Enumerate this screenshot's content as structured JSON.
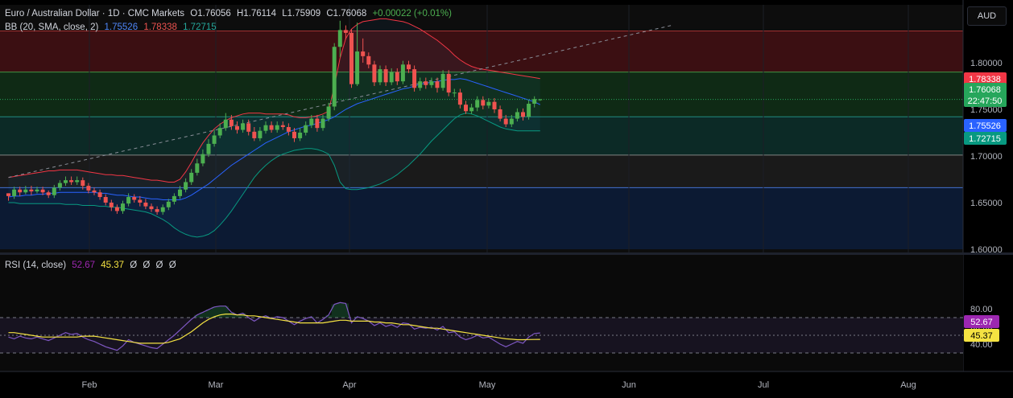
{
  "header": {
    "symbol": "Euro / Australian Dollar · 1D · CMC Markets",
    "open": "O1.76056",
    "high": "H1.76114",
    "low": "L1.75909",
    "close": "C1.76068",
    "change": "+0.00022 (+0.01%)"
  },
  "bb_legend": {
    "title": "BB (20, SMA, close, 2)",
    "basis": "1.75526",
    "upper": "1.78338",
    "lower": "1.72715"
  },
  "rsi_legend": {
    "title": "RSI (14, close)",
    "rsi": "52.67",
    "ma": "45.37",
    "extras": [
      "Ø",
      "Ø",
      "Ø",
      "Ø"
    ]
  },
  "currency_button": "AUD",
  "colors": {
    "up": "#4caf50",
    "down": "#ef5350",
    "bb_basis": "#2962ff",
    "bb_upper": "#f23645",
    "bb_lower": "#089981",
    "rsi": "#7e57c2",
    "rsi_ma": "#f5e342",
    "last_price": "#26a65b"
  },
  "chart_data": [
    {
      "type": "candlestick",
      "title": "Euro / Australian Dollar · 1D · CMC Markets",
      "price_axis": {
        "ticks": [
          "1.80000",
          "1.75000",
          "1.70000",
          "1.65000",
          "1.60000"
        ],
        "range": [
          1.6,
          1.85
        ]
      },
      "time_axis": {
        "ticks": [
          "Feb",
          "Mar",
          "Apr",
          "May",
          "Jun",
          "Jul",
          "Aug"
        ]
      },
      "price_labels": [
        {
          "name": "BB upper",
          "value": "1.78338",
          "color": "#f23645"
        },
        {
          "name": "Last close",
          "value": "1.76068",
          "countdown": "22:47:50",
          "color": "#26a65b"
        },
        {
          "name": "BB basis",
          "value": "1.75526",
          "color": "#2962ff"
        },
        {
          "name": "BB lower",
          "value": "1.72715",
          "color": "#089981"
        }
      ],
      "zones": [
        {
          "from": 1.79,
          "to": 1.834,
          "color": "red"
        },
        {
          "from": 1.742,
          "to": 1.79,
          "color": "green"
        },
        {
          "from": 1.701,
          "to": 1.742,
          "color": "teal"
        },
        {
          "from": 1.666,
          "to": 1.701,
          "color": "grey"
        },
        {
          "from": 1.6,
          "to": 1.666,
          "color": "blue"
        }
      ],
      "candles": [
        [
          1.66,
          1.657,
          1.66,
          1.652
        ],
        [
          1.657,
          1.664,
          1.667,
          1.654
        ],
        [
          1.664,
          1.661,
          1.667,
          1.657
        ],
        [
          1.661,
          1.664,
          1.668,
          1.659
        ],
        [
          1.664,
          1.662,
          1.668,
          1.658
        ],
        [
          1.662,
          1.664,
          1.667,
          1.66
        ],
        [
          1.664,
          1.661,
          1.667,
          1.658
        ],
        [
          1.661,
          1.658,
          1.663,
          1.655
        ],
        [
          1.658,
          1.666,
          1.669,
          1.655
        ],
        [
          1.666,
          1.671,
          1.674,
          1.663
        ],
        [
          1.671,
          1.674,
          1.678,
          1.668
        ],
        [
          1.674,
          1.672,
          1.678,
          1.669
        ],
        [
          1.672,
          1.674,
          1.678,
          1.669
        ],
        [
          1.674,
          1.668,
          1.677,
          1.664
        ],
        [
          1.668,
          1.663,
          1.671,
          1.66
        ],
        [
          1.663,
          1.661,
          1.666,
          1.658
        ],
        [
          1.661,
          1.656,
          1.664,
          1.653
        ],
        [
          1.656,
          1.65,
          1.659,
          1.647
        ],
        [
          1.65,
          1.645,
          1.653,
          1.641
        ],
        [
          1.645,
          1.641,
          1.648,
          1.638
        ],
        [
          1.641,
          1.649,
          1.652,
          1.638
        ],
        [
          1.649,
          1.656,
          1.66,
          1.646
        ],
        [
          1.656,
          1.653,
          1.659,
          1.65
        ],
        [
          1.653,
          1.65,
          1.657,
          1.646
        ],
        [
          1.65,
          1.646,
          1.654,
          1.643
        ],
        [
          1.646,
          1.643,
          1.649,
          1.64
        ],
        [
          1.643,
          1.64,
          1.646,
          1.637
        ],
        [
          1.64,
          1.645,
          1.648,
          1.637
        ],
        [
          1.645,
          1.651,
          1.654,
          1.642
        ],
        [
          1.651,
          1.657,
          1.66,
          1.648
        ],
        [
          1.657,
          1.664,
          1.668,
          1.654
        ],
        [
          1.664,
          1.672,
          1.676,
          1.661
        ],
        [
          1.672,
          1.682,
          1.686,
          1.669
        ],
        [
          1.682,
          1.692,
          1.697,
          1.679
        ],
        [
          1.692,
          1.702,
          1.707,
          1.689
        ],
        [
          1.702,
          1.713,
          1.718,
          1.699
        ],
        [
          1.713,
          1.722,
          1.728,
          1.71
        ],
        [
          1.722,
          1.73,
          1.735,
          1.719
        ],
        [
          1.73,
          1.739,
          1.746,
          1.727
        ],
        [
          1.739,
          1.732,
          1.744,
          1.728
        ],
        [
          1.732,
          1.728,
          1.737,
          1.724
        ],
        [
          1.728,
          1.735,
          1.739,
          1.725
        ],
        [
          1.735,
          1.726,
          1.739,
          1.722
        ],
        [
          1.726,
          1.719,
          1.731,
          1.716
        ],
        [
          1.719,
          1.727,
          1.731,
          1.716
        ],
        [
          1.727,
          1.733,
          1.737,
          1.724
        ],
        [
          1.733,
          1.728,
          1.737,
          1.725
        ],
        [
          1.728,
          1.733,
          1.737,
          1.725
        ],
        [
          1.733,
          1.731,
          1.737,
          1.728
        ],
        [
          1.731,
          1.726,
          1.735,
          1.722
        ],
        [
          1.726,
          1.719,
          1.73,
          1.715
        ],
        [
          1.719,
          1.725,
          1.73,
          1.716
        ],
        [
          1.725,
          1.733,
          1.737,
          1.722
        ],
        [
          1.733,
          1.74,
          1.744,
          1.73
        ],
        [
          1.74,
          1.73,
          1.744,
          1.726
        ],
        [
          1.73,
          1.74,
          1.744,
          1.727
        ],
        [
          1.74,
          1.753,
          1.757,
          1.737
        ],
        [
          1.753,
          1.817,
          1.821,
          1.749
        ],
        [
          1.817,
          1.835,
          1.845,
          1.806
        ],
        [
          1.835,
          1.832,
          1.84,
          1.825
        ],
        [
          1.832,
          1.777,
          1.836,
          1.773
        ],
        [
          1.777,
          1.812,
          1.843,
          1.775
        ],
        [
          1.812,
          1.807,
          1.826,
          1.8
        ],
        [
          1.807,
          1.798,
          1.811,
          1.794
        ],
        [
          1.798,
          1.779,
          1.802,
          1.775
        ],
        [
          1.779,
          1.793,
          1.797,
          1.776
        ],
        [
          1.793,
          1.779,
          1.797,
          1.775
        ],
        [
          1.779,
          1.79,
          1.794,
          1.776
        ],
        [
          1.79,
          1.78,
          1.794,
          1.776
        ],
        [
          1.78,
          1.798,
          1.802,
          1.777
        ],
        [
          1.798,
          1.793,
          1.802,
          1.789
        ],
        [
          1.793,
          1.773,
          1.797,
          1.769
        ],
        [
          1.773,
          1.78,
          1.784,
          1.77
        ],
        [
          1.78,
          1.776,
          1.784,
          1.772
        ],
        [
          1.776,
          1.78,
          1.784,
          1.773
        ],
        [
          1.78,
          1.773,
          1.784,
          1.768
        ],
        [
          1.773,
          1.788,
          1.792,
          1.77
        ],
        [
          1.788,
          1.768,
          1.792,
          1.764
        ],
        [
          1.768,
          1.768,
          1.772,
          1.763
        ],
        [
          1.768,
          1.755,
          1.772,
          1.751
        ],
        [
          1.755,
          1.748,
          1.759,
          1.745
        ],
        [
          1.748,
          1.752,
          1.756,
          1.745
        ],
        [
          1.752,
          1.76,
          1.764,
          1.748
        ],
        [
          1.76,
          1.754,
          1.764,
          1.75
        ],
        [
          1.754,
          1.758,
          1.762,
          1.751
        ],
        [
          1.758,
          1.75,
          1.762,
          1.746
        ],
        [
          1.75,
          1.74,
          1.754,
          1.737
        ],
        [
          1.74,
          1.734,
          1.744,
          1.731
        ],
        [
          1.734,
          1.74,
          1.744,
          1.731
        ],
        [
          1.74,
          1.747,
          1.751,
          1.737
        ],
        [
          1.747,
          1.742,
          1.751,
          1.738
        ],
        [
          1.742,
          1.756,
          1.76,
          1.739
        ],
        [
          1.756,
          1.761,
          1.764,
          1.752
        ],
        [
          1.7606,
          1.7607,
          1.7611,
          1.7591
        ]
      ],
      "bb_upper": [
        1.677,
        1.678,
        1.679,
        1.68,
        1.681,
        1.682,
        1.683,
        1.684,
        1.684,
        1.685,
        1.685,
        1.685,
        1.685,
        1.684,
        1.683,
        1.682,
        1.681,
        1.68,
        1.68,
        1.679,
        1.679,
        1.678,
        1.677,
        1.676,
        1.675,
        1.674,
        1.674,
        1.673,
        1.672,
        1.672,
        1.675,
        1.683,
        1.693,
        1.704,
        1.714,
        1.722,
        1.729,
        1.734,
        1.738,
        1.741,
        1.743,
        1.745,
        1.746,
        1.746,
        1.746,
        1.745,
        1.745,
        1.745,
        1.745,
        1.744,
        1.742,
        1.741,
        1.741,
        1.742,
        1.743,
        1.745,
        1.748,
        1.775,
        1.805,
        1.826,
        1.836,
        1.841,
        1.844,
        1.845,
        1.846,
        1.847,
        1.847,
        1.846,
        1.845,
        1.844,
        1.842,
        1.839,
        1.836,
        1.832,
        1.828,
        1.824,
        1.819,
        1.814,
        1.808,
        1.803,
        1.799,
        1.796,
        1.794,
        1.793,
        1.792,
        1.791,
        1.79,
        1.789,
        1.788,
        1.787,
        1.786,
        1.785,
        1.784,
        1.783
      ],
      "bb_basis": [
        1.656,
        1.657,
        1.657,
        1.658,
        1.658,
        1.659,
        1.659,
        1.66,
        1.66,
        1.661,
        1.661,
        1.661,
        1.661,
        1.661,
        1.661,
        1.661,
        1.66,
        1.66,
        1.659,
        1.658,
        1.658,
        1.657,
        1.656,
        1.656,
        1.655,
        1.654,
        1.654,
        1.653,
        1.653,
        1.653,
        1.653,
        1.655,
        1.658,
        1.662,
        1.666,
        1.67,
        1.675,
        1.68,
        1.685,
        1.69,
        1.694,
        1.698,
        1.702,
        1.706,
        1.71,
        1.714,
        1.717,
        1.72,
        1.723,
        1.726,
        1.728,
        1.73,
        1.732,
        1.733,
        1.735,
        1.737,
        1.739,
        1.742,
        1.746,
        1.75,
        1.753,
        1.756,
        1.758,
        1.76,
        1.762,
        1.764,
        1.766,
        1.768,
        1.77,
        1.772,
        1.773,
        1.775,
        1.777,
        1.778,
        1.779,
        1.78,
        1.781,
        1.782,
        1.782,
        1.783,
        1.782,
        1.78,
        1.778,
        1.776,
        1.774,
        1.772,
        1.77,
        1.768,
        1.766,
        1.764,
        1.762,
        1.76,
        1.758,
        1.755
      ],
      "bb_lower": [
        1.65,
        1.65,
        1.649,
        1.649,
        1.649,
        1.649,
        1.649,
        1.649,
        1.649,
        1.649,
        1.648,
        1.648,
        1.648,
        1.647,
        1.647,
        1.647,
        1.646,
        1.646,
        1.645,
        1.645,
        1.644,
        1.643,
        1.642,
        1.641,
        1.64,
        1.638,
        1.635,
        1.632,
        1.628,
        1.623,
        1.619,
        1.616,
        1.614,
        1.613,
        1.614,
        1.616,
        1.62,
        1.626,
        1.633,
        1.641,
        1.65,
        1.659,
        1.668,
        1.677,
        1.684,
        1.69,
        1.695,
        1.699,
        1.702,
        1.704,
        1.706,
        1.707,
        1.708,
        1.708,
        1.707,
        1.705,
        1.702,
        1.69,
        1.672,
        1.665,
        1.664,
        1.664,
        1.665,
        1.666,
        1.668,
        1.67,
        1.673,
        1.676,
        1.68,
        1.685,
        1.69,
        1.696,
        1.702,
        1.709,
        1.716,
        1.722,
        1.728,
        1.734,
        1.74,
        1.744,
        1.746,
        1.745,
        1.743,
        1.74,
        1.737,
        1.734,
        1.731,
        1.729,
        1.728,
        1.727,
        1.727,
        1.727,
        1.727,
        1.727
      ],
      "trendline": {
        "from": [
          0,
          1.677
        ],
        "to": [
          116,
          1.84
        ]
      }
    },
    {
      "type": "line",
      "title": "RSI (14, close)",
      "y_axis": {
        "ticks": [
          "80.00",
          "60.00",
          "40.00"
        ],
        "range": [
          17,
          89
        ]
      },
      "levels": [
        70,
        50,
        30
      ],
      "series": [
        {
          "name": "RSI",
          "values": [
            48,
            46,
            49,
            47,
            46,
            48,
            46,
            44,
            47,
            50,
            53,
            51,
            52,
            48,
            45,
            43,
            40,
            37,
            35,
            33,
            38,
            45,
            42,
            40,
            38,
            36,
            35,
            40,
            45,
            50,
            56,
            62,
            68,
            73,
            76,
            79,
            82,
            83,
            83,
            76,
            73,
            75,
            70,
            66,
            70,
            72,
            69,
            71,
            70,
            66,
            62,
            66,
            69,
            71,
            64,
            68,
            73,
            85,
            87,
            86,
            64,
            71,
            69,
            66,
            61,
            64,
            60,
            62,
            59,
            64,
            63,
            57,
            59,
            58,
            59,
            56,
            60,
            53,
            54,
            48,
            45,
            47,
            50,
            47,
            48,
            44,
            40,
            37,
            40,
            43,
            41,
            48,
            52,
            52.67
          ]
        },
        {
          "name": "RSI MA",
          "values": [
            53,
            53,
            52,
            51,
            50,
            49,
            48,
            48,
            48,
            48,
            48,
            48,
            48,
            49,
            49,
            49,
            48,
            47,
            46,
            45,
            44,
            43,
            42,
            41,
            41,
            41,
            41,
            41,
            42,
            44,
            46,
            50,
            54,
            59,
            64,
            68,
            71,
            73,
            74,
            74,
            73,
            73,
            72,
            72,
            71,
            70,
            69,
            68,
            67,
            66,
            65,
            64,
            64,
            64,
            64,
            64,
            65,
            66,
            67,
            67,
            66,
            66,
            66,
            66,
            65,
            65,
            64,
            64,
            63,
            62,
            62,
            61,
            60,
            59,
            58,
            58,
            57,
            56,
            55,
            54,
            53,
            52,
            51,
            50,
            49,
            48,
            47,
            46,
            45.5,
            45,
            45,
            45.2,
            45.3,
            45.37
          ]
        }
      ],
      "time_axis": {
        "ticks": [
          "Feb",
          "Mar",
          "Apr",
          "May",
          "Jun",
          "Jul",
          "Aug"
        ]
      }
    }
  ]
}
